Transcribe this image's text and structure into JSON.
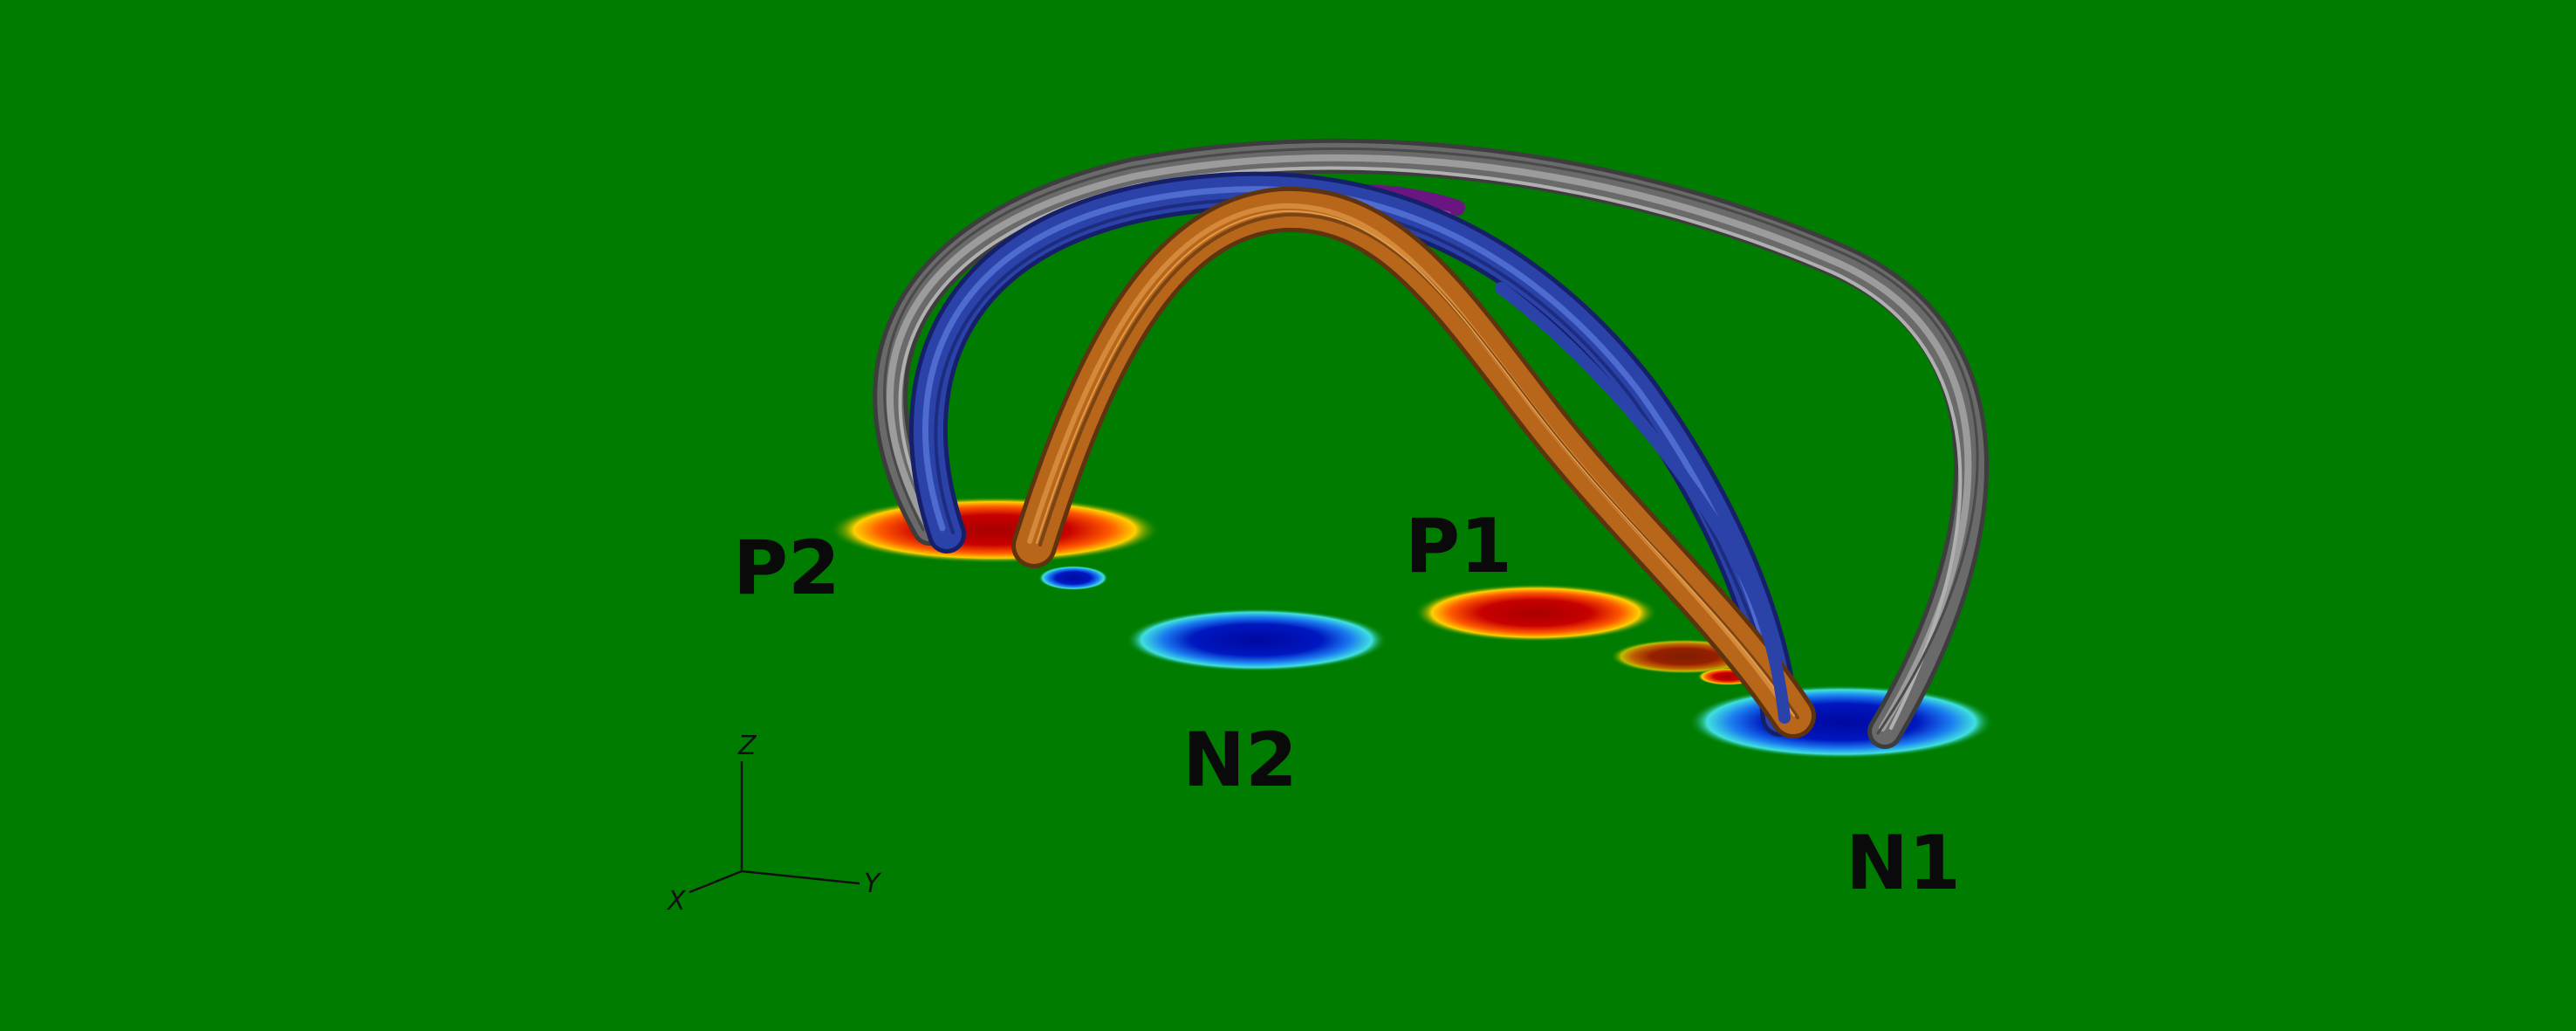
{
  "labels": {
    "p1": "P1",
    "p2": "P2",
    "n1": "N1",
    "n2": "N2"
  },
  "axes": {
    "x": "X",
    "y": "Y",
    "z": "Z"
  },
  "colors": {
    "background": "#007d00",
    "positive_polarity": "#c40000",
    "negative_polarity": "#0010b0",
    "loop_gray": "#7a7a7a",
    "loop_blue": "#2b43a8",
    "loop_orange": "#b8661a",
    "flux_purple": "#7a1a8a"
  }
}
